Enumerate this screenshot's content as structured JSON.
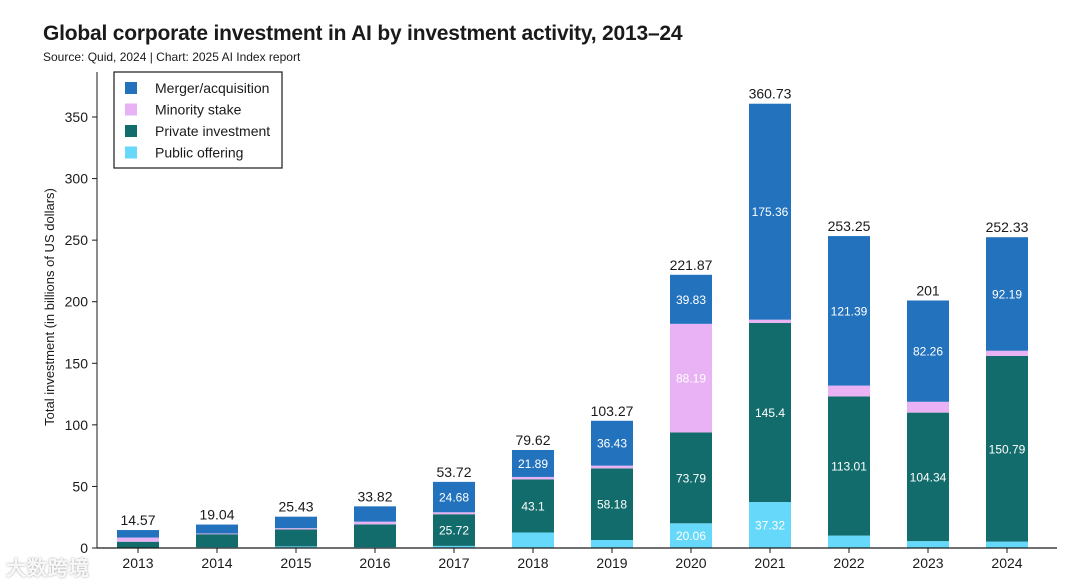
{
  "title": "Global corporate investment in AI by investment activity, 2013–24",
  "subtitle": "Source: Quid, 2024 | Chart: 2025 AI Index report",
  "watermark": "大数跨境",
  "chart_data": {
    "type": "bar",
    "stacked": true,
    "categories": [
      "2013",
      "2014",
      "2015",
      "2016",
      "2017",
      "2018",
      "2019",
      "2020",
      "2021",
      "2022",
      "2023",
      "2024"
    ],
    "ylabel": "Total investment (in billions of US dollars)",
    "xlabel": "",
    "ylim": [
      0,
      380
    ],
    "yticks": [
      0,
      50,
      100,
      150,
      200,
      250,
      300,
      350
    ],
    "legend_position": "top-left",
    "grid": false,
    "series": [
      {
        "name": "Public offering",
        "color": "#66d9fa",
        "values": [
          0.3,
          0.7,
          1.3,
          0.8,
          1.7,
          12.6,
          6.5,
          20.06,
          37.32,
          10.1,
          5.6,
          5.2
        ],
        "labels": [
          "",
          "",
          "",
          "",
          "",
          "",
          "",
          "20.06",
          "37.32",
          "",
          "",
          ""
        ]
      },
      {
        "name": "Private investment",
        "color": "#136c6c",
        "values": [
          4.8,
          10.5,
          13.8,
          18.4,
          25.72,
          43.1,
          58.18,
          73.79,
          145.4,
          113.01,
          104.34,
          150.79
        ],
        "labels": [
          "",
          "",
          "",
          "",
          "25.72",
          "43.1",
          "58.18",
          "73.79",
          "145.4",
          "113.01",
          "104.34",
          "150.79"
        ]
      },
      {
        "name": "Minority stake",
        "color": "#e8b2f4",
        "values": [
          3.4,
          0.6,
          1.0,
          2.2,
          1.6,
          2.0,
          2.2,
          88.19,
          2.7,
          8.8,
          8.8,
          4.2
        ],
        "labels": [
          "",
          "",
          "",
          "",
          "",
          "",
          "",
          "88.19",
          "",
          "",
          "",
          ""
        ]
      },
      {
        "name": "Merger/acquisition",
        "color": "#2272bd",
        "values": [
          6.07,
          7.24,
          9.33,
          12.42,
          24.68,
          21.89,
          36.43,
          39.83,
          175.36,
          121.39,
          82.26,
          92.19
        ],
        "labels": [
          "",
          "",
          "",
          "",
          "24.68",
          "21.89",
          "36.43",
          "39.83",
          "175.36",
          "121.39",
          "82.26",
          "92.19"
        ]
      }
    ],
    "legend_order": [
      "Merger/acquisition",
      "Minority stake",
      "Private investment",
      "Public offering"
    ],
    "totals": [
      "14.57",
      "19.04",
      "25.43",
      "33.82",
      "53.72",
      "79.62",
      "103.27",
      "221.87",
      "360.73",
      "253.25",
      "201",
      "252.33"
    ]
  }
}
